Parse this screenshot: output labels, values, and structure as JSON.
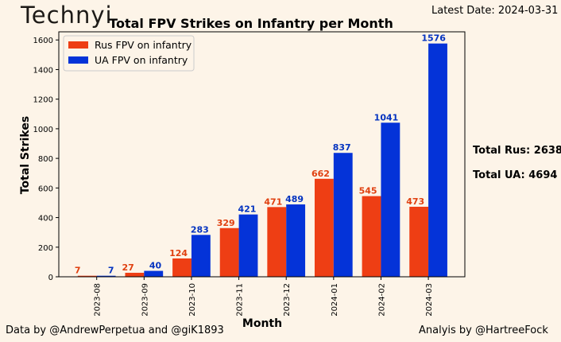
{
  "header": {
    "logo": "Technyi",
    "latest_date": "Latest Date: 2024-03-31"
  },
  "side": {
    "total_rus": "Total Rus: 2638",
    "total_ua": "Total UA: 4694"
  },
  "footer": {
    "data_credit": "Data by @AndrewPerpetua and @giK1893",
    "analysis_credit": "Analyis by @HartreeFock"
  },
  "chart_data": {
    "type": "bar",
    "title": "Total FPV Strikes on Infantry per Month",
    "xlabel": "Month",
    "ylabel": "Total Strikes",
    "categories": [
      "2023-08",
      "2023-09",
      "2023-10",
      "2023-11",
      "2023-12",
      "2024-01",
      "2024-02",
      "2024-03"
    ],
    "series": [
      {
        "name": "Rus FPV on infantry",
        "color": "#ee3e14",
        "label_color": "#e04010",
        "values": [
          7,
          27,
          124,
          329,
          471,
          662,
          545,
          473
        ]
      },
      {
        "name": "UA FPV on infantry",
        "color": "#0433d8",
        "label_color": "#0433c0",
        "values": [
          7,
          40,
          283,
          421,
          489,
          837,
          1041,
          1576
        ]
      }
    ],
    "yticks": [
      0,
      200,
      400,
      600,
      800,
      1000,
      1200,
      1400,
      1600
    ],
    "ylim": [
      0,
      1655
    ],
    "grid": false,
    "legend": "top-left"
  }
}
